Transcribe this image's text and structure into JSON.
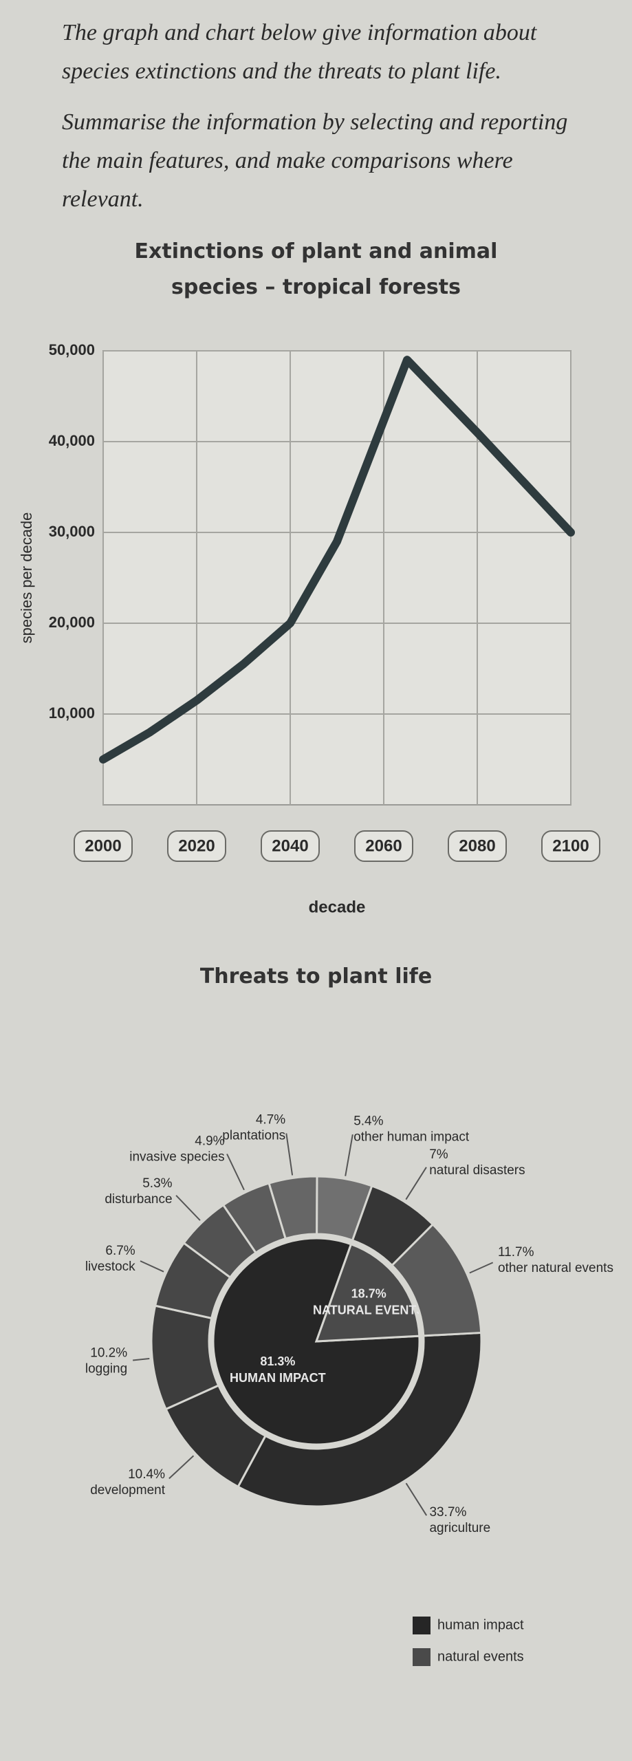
{
  "document": {
    "instructions": [
      "The graph and chart below give information about species extinctions and the threats to plant life.",
      "Summarise the information by selecting and reporting the main features, and make comparisons where relevant."
    ]
  },
  "chart_data": [
    {
      "type": "line",
      "title": "Extinctions of plant and animal species – tropical forests",
      "x_label": "decade",
      "y_label": "species per decade",
      "x": [
        2000,
        2010,
        2020,
        2030,
        2040,
        2050,
        2065,
        2080,
        2100
      ],
      "values": [
        5000,
        8000,
        11500,
        15500,
        20000,
        29000,
        49000,
        41000,
        30000
      ],
      "color": "#2e3b3e",
      "xlim": [
        2000,
        2100
      ],
      "ylim": [
        0,
        50000
      ],
      "xticks": [
        2000,
        2020,
        2040,
        2060,
        2080,
        2100
      ],
      "yticks": [
        {
          "value": 10000,
          "label": "10,000"
        },
        {
          "value": 20000,
          "label": "20,000"
        },
        {
          "value": 30000,
          "label": "30,000"
        },
        {
          "value": 40000,
          "label": "40,000"
        },
        {
          "value": 50000,
          "label": "50,000"
        }
      ],
      "grid": true
    },
    {
      "type": "sunburst",
      "title": "Threats to plant life",
      "groups": [
        {
          "name": "human impact",
          "label": "HUMAN IMPACT",
          "value": 81.3,
          "value_label": "81.3%",
          "color": "#262626",
          "categories": [
            "agriculture",
            "development",
            "logging",
            "livestock",
            "disturbance",
            "invasive species",
            "plantations",
            "other human impact"
          ],
          "values": [
            33.7,
            10.4,
            10.2,
            6.7,
            5.3,
            4.9,
            4.7,
            5.4
          ],
          "value_labels": [
            "33.7%",
            "10.4%",
            "10.2%",
            "6.7%",
            "5.3%",
            "4.9%",
            "4.7%",
            "5.4%"
          ],
          "colors": [
            "#2b2b2b",
            "#333333",
            "#3d3d3d",
            "#474747",
            "#525252",
            "#5c5c5c",
            "#666666",
            "#707070"
          ]
        },
        {
          "name": "natural events",
          "label": "NATURAL EVENTS",
          "value": 18.7,
          "value_label": "18.7%",
          "color": "#4a4a4a",
          "categories": [
            "natural disasters",
            "other natural events"
          ],
          "values": [
            7,
            11.7
          ],
          "value_labels": [
            "7%",
            "11.7%"
          ],
          "colors": [
            "#363636",
            "#5a5a5a"
          ]
        }
      ]
    }
  ]
}
